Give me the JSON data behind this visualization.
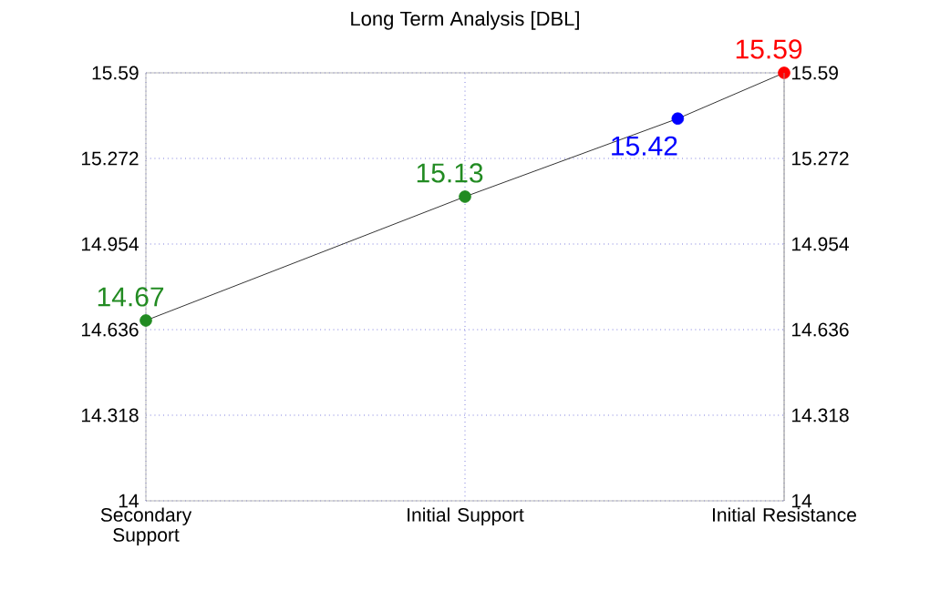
{
  "chart_data": {
    "type": "line",
    "title": "Long Term Analysis [DBL]",
    "categories": [
      "Secondary Support",
      null,
      null,
      "Initial Support",
      null,
      null,
      "Initial Resistance"
    ],
    "series": [
      {
        "color": "#000000",
        "colors": [
          "#228b22",
          null,
          null,
          "#228b22",
          null,
          "#0000ff",
          "#ff0000"
        ],
        "values": [
          14.67,
          null,
          null,
          15.13,
          null,
          15.42,
          15.59
        ]
      }
    ],
    "ylim": [
      14,
      15.59
    ],
    "yticks": [
      14,
      14.318,
      14.636,
      14.954,
      15.272,
      15.59
    ],
    "y2lim": [
      14,
      15.59
    ],
    "y2ticks": [
      14,
      14.318,
      14.636,
      14.954,
      15.272,
      15.59
    ],
    "grid": true,
    "marker": "circle",
    "line_style": "solid",
    "data_labels": true
  }
}
